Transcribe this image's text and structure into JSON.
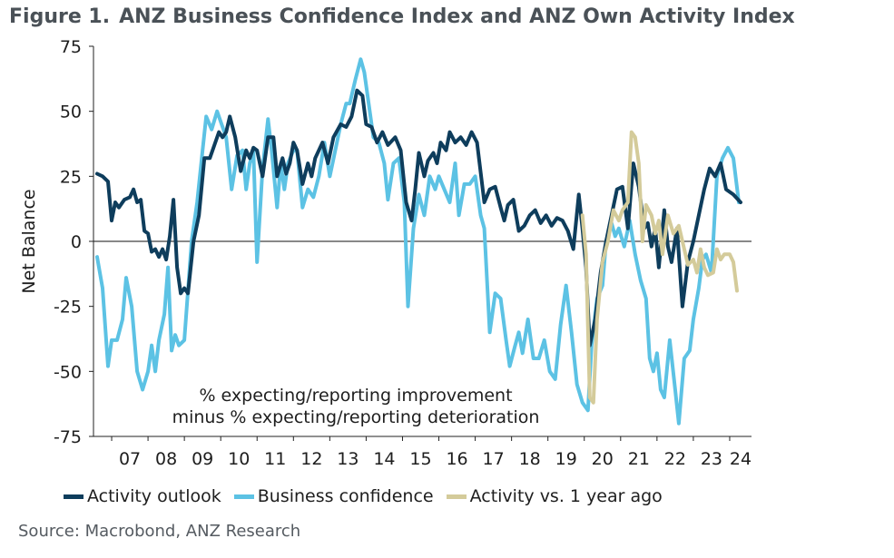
{
  "title": {
    "number": "Figure 1.",
    "text": "ANZ Business Confidence Index and ANZ Own Activity Index"
  },
  "source": "Source: Macrobond, ANZ Research",
  "chart_data": {
    "type": "line",
    "ylabel": "Net Balance",
    "ylim": [
      -75,
      75
    ],
    "yticks": [
      75,
      50,
      25,
      0,
      -25,
      -50,
      -75
    ],
    "xlim": [
      2006.5,
      2024.6
    ],
    "xtick_positions": [
      2007.5,
      2008.5,
      2009.5,
      2010.5,
      2011.5,
      2012.5,
      2013.5,
      2014.5,
      2015.5,
      2016.5,
      2017.5,
      2018.5,
      2019.5,
      2020.5,
      2021.5,
      2022.5,
      2023.5,
      2024.3
    ],
    "xtick_labels": [
      "07",
      "08",
      "09",
      "10",
      "11",
      "12",
      "13",
      "14",
      "15",
      "16",
      "17",
      "18",
      "19",
      "20",
      "21",
      "22",
      "23",
      "24"
    ],
    "annotation": [
      "% expecting/reporting improvement",
      "minus % expecting/reporting deterioration"
    ],
    "series": [
      {
        "name": "Activity outlook",
        "color": "#0e3d5c",
        "points": [
          [
            2006.6,
            26
          ],
          [
            2006.75,
            25
          ],
          [
            2006.9,
            23
          ],
          [
            2007.0,
            8
          ],
          [
            2007.1,
            15
          ],
          [
            2007.2,
            13
          ],
          [
            2007.35,
            16
          ],
          [
            2007.5,
            17
          ],
          [
            2007.6,
            20
          ],
          [
            2007.7,
            15
          ],
          [
            2007.8,
            16
          ],
          [
            2007.9,
            4
          ],
          [
            2008.0,
            3
          ],
          [
            2008.1,
            -4
          ],
          [
            2008.2,
            -3
          ],
          [
            2008.3,
            -6
          ],
          [
            2008.4,
            -3
          ],
          [
            2008.5,
            -7
          ],
          [
            2008.6,
            2
          ],
          [
            2008.7,
            16
          ],
          [
            2008.8,
            -10
          ],
          [
            2008.9,
            -20
          ],
          [
            2009.0,
            -18
          ],
          [
            2009.1,
            -20
          ],
          [
            2009.25,
            0
          ],
          [
            2009.4,
            10
          ],
          [
            2009.55,
            32
          ],
          [
            2009.7,
            32
          ],
          [
            2009.85,
            38
          ],
          [
            2009.95,
            42
          ],
          [
            2010.05,
            40
          ],
          [
            2010.15,
            42
          ],
          [
            2010.25,
            48
          ],
          [
            2010.4,
            40
          ],
          [
            2010.55,
            27
          ],
          [
            2010.7,
            35
          ],
          [
            2010.8,
            32
          ],
          [
            2010.9,
            36
          ],
          [
            2011.0,
            35
          ],
          [
            2011.15,
            25
          ],
          [
            2011.3,
            40
          ],
          [
            2011.45,
            40
          ],
          [
            2011.55,
            25
          ],
          [
            2011.7,
            32
          ],
          [
            2011.8,
            26
          ],
          [
            2011.9,
            30
          ],
          [
            2012.0,
            38
          ],
          [
            2012.1,
            35
          ],
          [
            2012.25,
            22
          ],
          [
            2012.4,
            30
          ],
          [
            2012.5,
            25
          ],
          [
            2012.6,
            32
          ],
          [
            2012.8,
            38
          ],
          [
            2012.95,
            30
          ],
          [
            2013.1,
            40
          ],
          [
            2013.3,
            45
          ],
          [
            2013.45,
            44
          ],
          [
            2013.6,
            48
          ],
          [
            2013.75,
            58
          ],
          [
            2013.9,
            56
          ],
          [
            2014.0,
            45
          ],
          [
            2014.15,
            44
          ],
          [
            2014.3,
            38
          ],
          [
            2014.45,
            42
          ],
          [
            2014.6,
            37
          ],
          [
            2014.8,
            40
          ],
          [
            2014.95,
            35
          ],
          [
            2015.1,
            15
          ],
          [
            2015.25,
            8
          ],
          [
            2015.35,
            20
          ],
          [
            2015.45,
            34
          ],
          [
            2015.6,
            25
          ],
          [
            2015.7,
            31
          ],
          [
            2015.85,
            34
          ],
          [
            2015.95,
            30
          ],
          [
            2016.05,
            38
          ],
          [
            2016.2,
            35
          ],
          [
            2016.3,
            42
          ],
          [
            2016.45,
            38
          ],
          [
            2016.6,
            40
          ],
          [
            2016.75,
            37
          ],
          [
            2016.9,
            42
          ],
          [
            2017.05,
            38
          ],
          [
            2017.25,
            15
          ],
          [
            2017.4,
            20
          ],
          [
            2017.55,
            21
          ],
          [
            2017.7,
            13
          ],
          [
            2017.8,
            8
          ],
          [
            2017.9,
            14
          ],
          [
            2018.05,
            16
          ],
          [
            2018.2,
            4
          ],
          [
            2018.35,
            6
          ],
          [
            2018.5,
            10
          ],
          [
            2018.65,
            12
          ],
          [
            2018.8,
            7
          ],
          [
            2018.95,
            10
          ],
          [
            2019.1,
            6
          ],
          [
            2019.25,
            9
          ],
          [
            2019.4,
            8
          ],
          [
            2019.55,
            4
          ],
          [
            2019.7,
            -3
          ],
          [
            2019.85,
            18
          ],
          [
            2019.95,
            5
          ],
          [
            2020.05,
            -10
          ],
          [
            2020.15,
            -40
          ],
          [
            2020.3,
            -30
          ],
          [
            2020.45,
            -12
          ],
          [
            2020.6,
            0
          ],
          [
            2020.75,
            10
          ],
          [
            2020.9,
            20
          ],
          [
            2021.05,
            21
          ],
          [
            2021.2,
            5
          ],
          [
            2021.35,
            30
          ],
          [
            2021.5,
            21
          ],
          [
            2021.65,
            5
          ],
          [
            2021.75,
            7
          ],
          [
            2021.85,
            -2
          ],
          [
            2021.95,
            5
          ],
          [
            2022.05,
            -10
          ],
          [
            2022.2,
            12
          ],
          [
            2022.3,
            -2
          ],
          [
            2022.4,
            -8
          ],
          [
            2022.55,
            5
          ],
          [
            2022.7,
            -25
          ],
          [
            2022.85,
            -8
          ],
          [
            2023.0,
            0
          ],
          [
            2023.15,
            10
          ],
          [
            2023.3,
            20
          ],
          [
            2023.45,
            28
          ],
          [
            2023.6,
            25
          ],
          [
            2023.75,
            30
          ],
          [
            2023.9,
            20
          ],
          [
            2024.1,
            18
          ],
          [
            2024.3,
            15
          ]
        ]
      },
      {
        "name": "Business confidence",
        "color": "#5cc2e4",
        "points": [
          [
            2006.6,
            -6
          ],
          [
            2006.75,
            -18
          ],
          [
            2006.9,
            -48
          ],
          [
            2007.0,
            -38
          ],
          [
            2007.15,
            -38
          ],
          [
            2007.3,
            -30
          ],
          [
            2007.4,
            -14
          ],
          [
            2007.55,
            -25
          ],
          [
            2007.7,
            -50
          ],
          [
            2007.85,
            -57
          ],
          [
            2008.0,
            -50
          ],
          [
            2008.1,
            -40
          ],
          [
            2008.2,
            -50
          ],
          [
            2008.3,
            -38
          ],
          [
            2008.45,
            -28
          ],
          [
            2008.55,
            -10
          ],
          [
            2008.65,
            -42
          ],
          [
            2008.75,
            -36
          ],
          [
            2008.85,
            -40
          ],
          [
            2009.0,
            -38
          ],
          [
            2009.2,
            0
          ],
          [
            2009.35,
            15
          ],
          [
            2009.5,
            35
          ],
          [
            2009.6,
            48
          ],
          [
            2009.75,
            43
          ],
          [
            2009.9,
            50
          ],
          [
            2010.0,
            46
          ],
          [
            2010.15,
            40
          ],
          [
            2010.3,
            20
          ],
          [
            2010.45,
            33
          ],
          [
            2010.6,
            35
          ],
          [
            2010.7,
            20
          ],
          [
            2010.8,
            30
          ],
          [
            2010.9,
            35
          ],
          [
            2011.0,
            -8
          ],
          [
            2011.15,
            28
          ],
          [
            2011.3,
            47
          ],
          [
            2011.4,
            35
          ],
          [
            2011.55,
            13
          ],
          [
            2011.65,
            30
          ],
          [
            2011.75,
            20
          ],
          [
            2011.85,
            30
          ],
          [
            2012.0,
            35
          ],
          [
            2012.1,
            35
          ],
          [
            2012.25,
            13
          ],
          [
            2012.4,
            20
          ],
          [
            2012.55,
            17
          ],
          [
            2012.7,
            25
          ],
          [
            2012.85,
            38
          ],
          [
            2013.0,
            25
          ],
          [
            2013.15,
            35
          ],
          [
            2013.3,
            45
          ],
          [
            2013.45,
            53
          ],
          [
            2013.55,
            53
          ],
          [
            2013.7,
            62
          ],
          [
            2013.85,
            70
          ],
          [
            2013.95,
            65
          ],
          [
            2014.05,
            55
          ],
          [
            2014.2,
            40
          ],
          [
            2014.35,
            38
          ],
          [
            2014.5,
            30
          ],
          [
            2014.6,
            16
          ],
          [
            2014.75,
            30
          ],
          [
            2014.9,
            32
          ],
          [
            2015.05,
            15
          ],
          [
            2015.15,
            -25
          ],
          [
            2015.3,
            5
          ],
          [
            2015.45,
            18
          ],
          [
            2015.6,
            10
          ],
          [
            2015.75,
            25
          ],
          [
            2015.9,
            20
          ],
          [
            2016.0,
            25
          ],
          [
            2016.15,
            20
          ],
          [
            2016.3,
            15
          ],
          [
            2016.45,
            30
          ],
          [
            2016.55,
            10
          ],
          [
            2016.7,
            22
          ],
          [
            2016.85,
            22
          ],
          [
            2017.0,
            25
          ],
          [
            2017.15,
            10
          ],
          [
            2017.25,
            5
          ],
          [
            2017.4,
            -35
          ],
          [
            2017.55,
            -20
          ],
          [
            2017.7,
            -22
          ],
          [
            2017.85,
            -38
          ],
          [
            2017.95,
            -48
          ],
          [
            2018.1,
            -40
          ],
          [
            2018.2,
            -35
          ],
          [
            2018.3,
            -43
          ],
          [
            2018.45,
            -30
          ],
          [
            2018.6,
            -45
          ],
          [
            2018.75,
            -45
          ],
          [
            2018.9,
            -38
          ],
          [
            2019.05,
            -50
          ],
          [
            2019.2,
            -53
          ],
          [
            2019.35,
            -32
          ],
          [
            2019.5,
            -17
          ],
          [
            2019.65,
            -35
          ],
          [
            2019.8,
            -55
          ],
          [
            2019.95,
            -62
          ],
          [
            2020.1,
            -65
          ],
          [
            2020.2,
            -40
          ],
          [
            2020.35,
            -22
          ],
          [
            2020.5,
            -17
          ],
          [
            2020.6,
            0
          ],
          [
            2020.75,
            7
          ],
          [
            2020.85,
            2
          ],
          [
            2020.95,
            5
          ],
          [
            2021.1,
            -2
          ],
          [
            2021.25,
            8
          ],
          [
            2021.4,
            -5
          ],
          [
            2021.55,
            -15
          ],
          [
            2021.7,
            -22
          ],
          [
            2021.8,
            -45
          ],
          [
            2021.9,
            -50
          ],
          [
            2022.0,
            -43
          ],
          [
            2022.1,
            -57
          ],
          [
            2022.2,
            -60
          ],
          [
            2022.35,
            -38
          ],
          [
            2022.5,
            -57
          ],
          [
            2022.6,
            -70
          ],
          [
            2022.75,
            -45
          ],
          [
            2022.9,
            -42
          ],
          [
            2023.0,
            -30
          ],
          [
            2023.15,
            -18
          ],
          [
            2023.25,
            -7
          ],
          [
            2023.35,
            -5
          ],
          [
            2023.5,
            -12
          ],
          [
            2023.65,
            25
          ],
          [
            2023.8,
            32
          ],
          [
            2023.95,
            36
          ],
          [
            2024.1,
            32
          ],
          [
            2024.25,
            15
          ]
        ]
      },
      {
        "name": "Activity vs. 1 year ago",
        "color": "#d4cb9a",
        "points": [
          [
            2019.95,
            10
          ],
          [
            2020.05,
            -5
          ],
          [
            2020.15,
            -60
          ],
          [
            2020.25,
            -62
          ],
          [
            2020.35,
            -30
          ],
          [
            2020.5,
            -8
          ],
          [
            2020.65,
            0
          ],
          [
            2020.8,
            12
          ],
          [
            2020.95,
            8
          ],
          [
            2021.05,
            12
          ],
          [
            2021.2,
            15
          ],
          [
            2021.3,
            42
          ],
          [
            2021.4,
            40
          ],
          [
            2021.5,
            30
          ],
          [
            2021.6,
            0
          ],
          [
            2021.7,
            14
          ],
          [
            2021.85,
            10
          ],
          [
            2021.95,
            3
          ],
          [
            2022.05,
            8
          ],
          [
            2022.15,
            -5
          ],
          [
            2022.3,
            10
          ],
          [
            2022.45,
            3
          ],
          [
            2022.6,
            6
          ],
          [
            2022.75,
            -3
          ],
          [
            2022.85,
            -9
          ],
          [
            2023.0,
            -7
          ],
          [
            2023.1,
            -12
          ],
          [
            2023.2,
            -3
          ],
          [
            2023.3,
            -10
          ],
          [
            2023.4,
            -13
          ],
          [
            2023.55,
            -12
          ],
          [
            2023.65,
            -3
          ],
          [
            2023.75,
            -7
          ],
          [
            2023.85,
            -5
          ],
          [
            2024.0,
            -5
          ],
          [
            2024.1,
            -8
          ],
          [
            2024.2,
            -19
          ]
        ]
      }
    ]
  }
}
